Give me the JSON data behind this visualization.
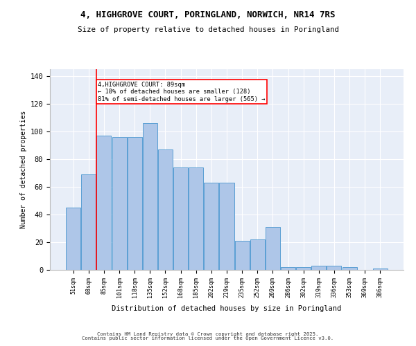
{
  "title1": "4, HIGHGROVE COURT, PORINGLAND, NORWICH, NR14 7RS",
  "title2": "Size of property relative to detached houses in Poringland",
  "xlabel": "Distribution of detached houses by size in Poringland",
  "ylabel": "Number of detached properties",
  "categories": [
    "51sqm",
    "68sqm",
    "85sqm",
    "101sqm",
    "118sqm",
    "135sqm",
    "152sqm",
    "168sqm",
    "185sqm",
    "202sqm",
    "219sqm",
    "235sqm",
    "252sqm",
    "269sqm",
    "286sqm",
    "302sqm",
    "319sqm",
    "336sqm",
    "353sqm",
    "369sqm",
    "386sqm"
  ],
  "values": [
    45,
    69,
    97,
    96,
    96,
    106,
    87,
    74,
    74,
    63,
    63,
    21,
    22,
    31,
    2,
    2,
    3,
    3,
    2,
    0,
    1
  ],
  "bar_color": "#aec6e8",
  "bar_edge_color": "#5a9fd4",
  "annotation_text": "4,HIGHGROVE COURT: 89sqm\n← 18% of detached houses are smaller (128)\n81% of semi-detached houses are larger (565) →",
  "footer1": "Contains HM Land Registry data © Crown copyright and database right 2025.",
  "footer2": "Contains public sector information licensed under the Open Government Licence v3.0.",
  "bg_color": "#e8eef8",
  "ylim": [
    0,
    145
  ],
  "yticks": [
    0,
    20,
    40,
    60,
    80,
    100,
    120,
    140
  ],
  "red_line_x": 1.5
}
